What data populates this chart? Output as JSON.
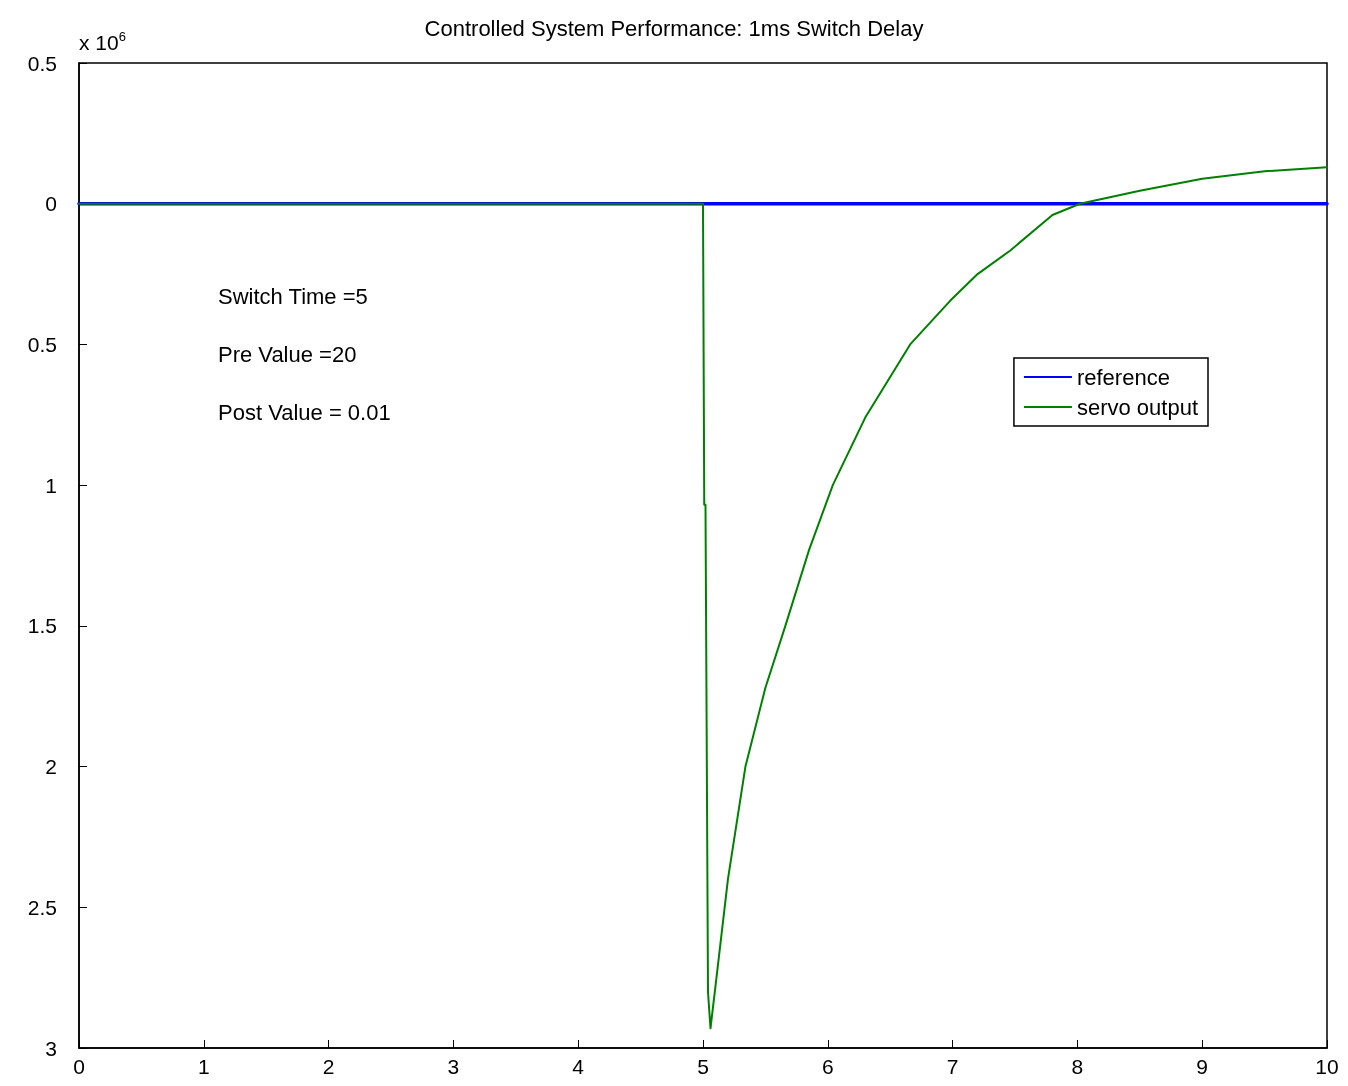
{
  "chart_data": {
    "type": "line",
    "title": "Controlled System Performance: 1ms Switch Delay",
    "ylabel": "x 10$^{6}$",
    "xlim": [
      0,
      10
    ],
    "xticks": [
      0,
      1,
      2,
      3,
      4,
      5,
      6,
      7,
      8,
      9,
      10
    ],
    "ylim": [
      -3,
      0.5
    ],
    "yticks": [
      {
        "value": 0.5,
        "label": "0.5"
      },
      {
        "value": 0,
        "label": "0"
      },
      {
        "value": -0.5,
        "label": "0.5"
      },
      {
        "value": -1,
        "label": "1"
      },
      {
        "value": -1.5,
        "label": "1.5"
      },
      {
        "value": -2,
        "label": "2"
      },
      {
        "value": -2.5,
        "label": "2.5"
      },
      {
        "value": -3,
        "label": "3"
      }
    ],
    "grid": false,
    "legend": "top right",
    "marker": "none",
    "line_style": "solid",
    "series": [
      {
        "name": "reference",
        "color": "#0000ff",
        "x": [
          0,
          10
        ],
        "values": [
          0,
          0
        ]
      },
      {
        "name": "servo output",
        "color": "#008000",
        "x": [
          0,
          5,
          5.01,
          5.02,
          5.04,
          5.06,
          5.1,
          5.2,
          5.34,
          5.5,
          5.66,
          5.85,
          6.04,
          6.3,
          6.66,
          6.98,
          7.2,
          7.46,
          7.8,
          8.02,
          8.5,
          9,
          9.5,
          10
        ],
        "values": [
          0,
          0,
          -1.07,
          -1.07,
          -2.8,
          -2.93,
          -2.78,
          -2.4,
          -2,
          -1.72,
          -1.5,
          -1.23,
          -1,
          -0.76,
          -0.5,
          -0.345,
          -0.25,
          -0.167,
          -0.04,
          0,
          0.046,
          0.089,
          0.115,
          0.13
        ]
      }
    ],
    "annotations": [
      "Switch Time =5",
      "Pre Value =20",
      "Post Value = 0.01"
    ]
  }
}
